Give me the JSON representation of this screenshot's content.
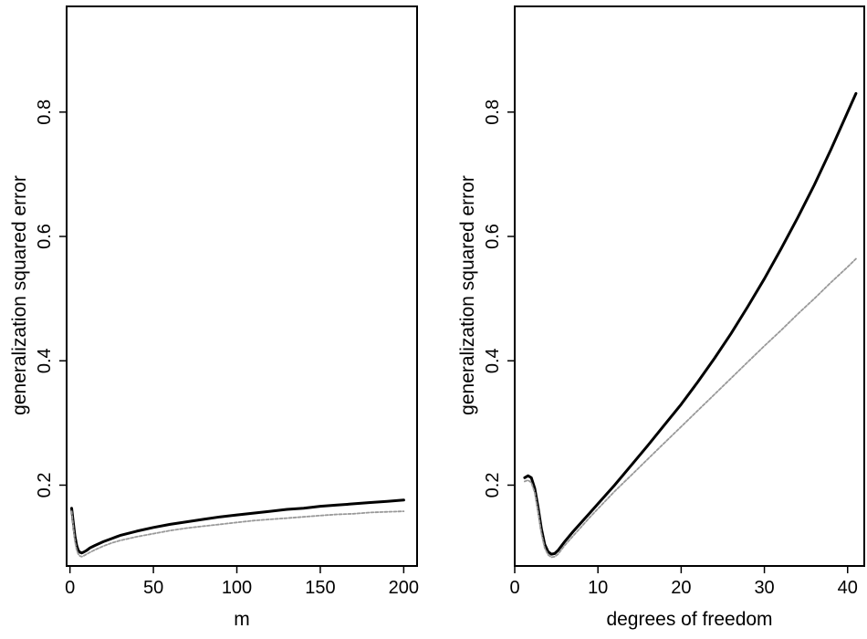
{
  "chart_data": [
    {
      "type": "line",
      "title": "",
      "xlabel": "m",
      "ylabel": "generalization squared error",
      "xlim": [
        -2,
        208
      ],
      "ylim": [
        0.07,
        0.97
      ],
      "xticks": [
        0,
        50,
        100,
        150,
        200
      ],
      "xtick_labels": [
        "0",
        "50",
        "100",
        "150",
        "200"
      ],
      "yticks": [
        0.2,
        0.4,
        0.6,
        0.8
      ],
      "ytick_labels": [
        "0.2",
        "0.4",
        "0.6",
        "0.8"
      ],
      "grid": false,
      "series": [
        {
          "style": "solid",
          "color": "#000000",
          "x": [
            1,
            2,
            3,
            4,
            5,
            6,
            7,
            8,
            10,
            12,
            15,
            20,
            25,
            30,
            40,
            50,
            60,
            70,
            80,
            90,
            100,
            110,
            120,
            130,
            140,
            150,
            160,
            170,
            180,
            190,
            200
          ],
          "y": [
            0.163,
            0.14,
            0.118,
            0.103,
            0.095,
            0.092,
            0.091,
            0.092,
            0.095,
            0.099,
            0.103,
            0.109,
            0.114,
            0.119,
            0.126,
            0.132,
            0.137,
            0.141,
            0.145,
            0.149,
            0.152,
            0.155,
            0.158,
            0.161,
            0.163,
            0.166,
            0.168,
            0.17,
            0.172,
            0.174,
            0.176
          ]
        },
        {
          "style": "dashed",
          "color": "#999999",
          "x": [
            1,
            2,
            3,
            4,
            5,
            6,
            7,
            8,
            10,
            12,
            15,
            20,
            25,
            30,
            40,
            50,
            60,
            70,
            80,
            90,
            100,
            110,
            120,
            130,
            140,
            150,
            160,
            170,
            180,
            190,
            200
          ],
          "y": [
            0.158,
            0.133,
            0.11,
            0.096,
            0.089,
            0.086,
            0.085,
            0.086,
            0.089,
            0.092,
            0.096,
            0.102,
            0.107,
            0.111,
            0.117,
            0.122,
            0.127,
            0.131,
            0.134,
            0.137,
            0.14,
            0.143,
            0.145,
            0.147,
            0.149,
            0.151,
            0.153,
            0.154,
            0.156,
            0.157,
            0.158
          ]
        }
      ]
    },
    {
      "type": "line",
      "title": "",
      "xlabel": "degrees of freedom",
      "ylabel": "generalization squared error",
      "xlim": [
        0,
        42
      ],
      "ylim": [
        0.07,
        0.97
      ],
      "xticks": [
        0,
        10,
        20,
        30,
        40
      ],
      "xtick_labels": [
        "0",
        "10",
        "20",
        "30",
        "40"
      ],
      "yticks": [
        0.2,
        0.4,
        0.6,
        0.8
      ],
      "ytick_labels": [
        "0.2",
        "0.4",
        "0.6",
        "0.8"
      ],
      "grid": false,
      "series": [
        {
          "style": "solid",
          "color": "#000000",
          "x": [
            1.2,
            1.6,
            2.0,
            2.4,
            2.8,
            3.2,
            3.6,
            4.0,
            4.4,
            4.8,
            5.2,
            5.6,
            6.0,
            7,
            8,
            9,
            10,
            12,
            14,
            16,
            18,
            20,
            22,
            24,
            26,
            28,
            30,
            32,
            34,
            36,
            38,
            40,
            41
          ],
          "y": [
            0.212,
            0.215,
            0.212,
            0.195,
            0.165,
            0.13,
            0.105,
            0.093,
            0.089,
            0.09,
            0.095,
            0.102,
            0.109,
            0.125,
            0.14,
            0.155,
            0.17,
            0.2,
            0.232,
            0.264,
            0.297,
            0.33,
            0.366,
            0.404,
            0.444,
            0.487,
            0.532,
            0.58,
            0.63,
            0.683,
            0.74,
            0.8,
            0.83
          ]
        },
        {
          "style": "dashed",
          "color": "#999999",
          "x": [
            1.2,
            1.6,
            2.0,
            2.4,
            2.8,
            3.2,
            3.6,
            4.0,
            4.4,
            4.8,
            5.2,
            5.6,
            6.0,
            7,
            8,
            9,
            10,
            12,
            14,
            16,
            18,
            20,
            22,
            24,
            26,
            28,
            30,
            32,
            34,
            36,
            38,
            40,
            41
          ],
          "y": [
            0.206,
            0.208,
            0.204,
            0.188,
            0.158,
            0.123,
            0.099,
            0.088,
            0.084,
            0.085,
            0.089,
            0.096,
            0.103,
            0.118,
            0.133,
            0.148,
            0.162,
            0.19,
            0.216,
            0.242,
            0.268,
            0.294,
            0.32,
            0.346,
            0.372,
            0.398,
            0.424,
            0.449,
            0.475,
            0.5,
            0.526,
            0.551,
            0.564
          ]
        }
      ]
    }
  ]
}
